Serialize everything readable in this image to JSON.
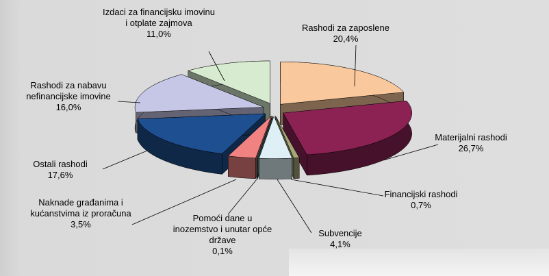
{
  "chart_data": {
    "type": "pie3d",
    "categories": [
      "Rashodi za zaposlene",
      "Materijalni rashodi",
      "Financijski rashodi",
      "Subvencije",
      "Pomoći dane u inozemstvo i unutar opće države",
      "Naknade građanima i kućanstvima iz proračuna",
      "Ostali rashodi",
      "Rashodi za nabavu nefinancijske imovine",
      "Izdaci za financijsku imovinu i otplate zajmova"
    ],
    "values": [
      20.4,
      26.7,
      0.7,
      4.1,
      0.1,
      3.5,
      17.6,
      16.0,
      11.0
    ],
    "value_labels": [
      "20,4%",
      "26,7%",
      "0,7%",
      "4,1%",
      "0,1%",
      "3,5%",
      "17,6%",
      "16,0%",
      "11,0%"
    ],
    "colors": [
      "#f9c89c",
      "#8c2254",
      "#a6a67a",
      "#def0f6",
      "#4e8080",
      "#f08282",
      "#1e4f90",
      "#c6c6e6",
      "#d6ebd0"
    ]
  }
}
